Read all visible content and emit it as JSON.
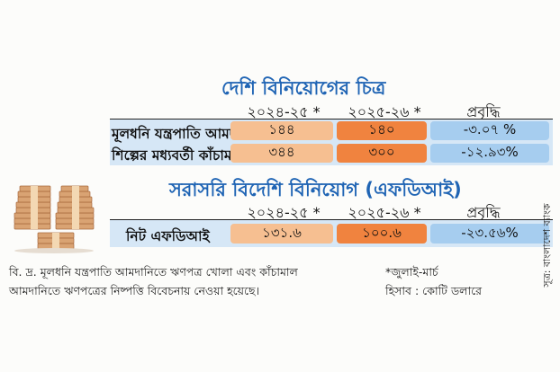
{
  "domestic": {
    "title": "দেশি বিনিয়োগের চিত্র",
    "col1": "২০২৪-২৫ *",
    "col2": "২০২৫-২৬ *",
    "col3": "প্রবৃদ্ধি",
    "rows": [
      {
        "label": "মূলধনি যন্ত্রপাতি আমদানি",
        "v1": "১৪৪",
        "v2": "১৪০",
        "growth": "-৩.০৭ %"
      },
      {
        "label": "শিল্পের মধ্যবর্তী কাঁচামাল আমদানি",
        "v1": "৩৪৪",
        "v2": "৩০০",
        "growth": "-১২.৯৩%"
      }
    ]
  },
  "fdi": {
    "title": "সরাসরি বিদেশি বিনিয়োগ (এফডিআই)",
    "col1": "২০২৪-২৫ *",
    "col2": "২০২৫-২৬ *",
    "col3": "প্রবৃদ্ধি",
    "row": {
      "label": "নিট এফডিআই",
      "v1": "১৩১.৬",
      "v2": "১০০.৬",
      "growth": "-২৩.৫৬%"
    }
  },
  "notes": {
    "line1": "বি. দ্র. মূলধনি যন্ত্রপাতি আমদানিতে ঋণপত্র খোলা এবং কাঁচামাল",
    "line2": "আমদানিতে ঋণপত্রের নিষ্পত্তি বিবেচনায় নেওয়া হয়েছে।",
    "period": "*জুলাই-মার্চ",
    "unit": "হিসাব : কোটি ডলারে"
  },
  "source": "সূত্র: বাংলাদেশ ব্যাংক",
  "icons": {
    "illustration": "money-stack-icon"
  },
  "colors": {
    "title": "#1f64b4",
    "panel": "#d6e7f6",
    "cell_2024": "#f6bf91",
    "cell_2025": "#f0833f",
    "cell_growth": "#a6cdef"
  }
}
